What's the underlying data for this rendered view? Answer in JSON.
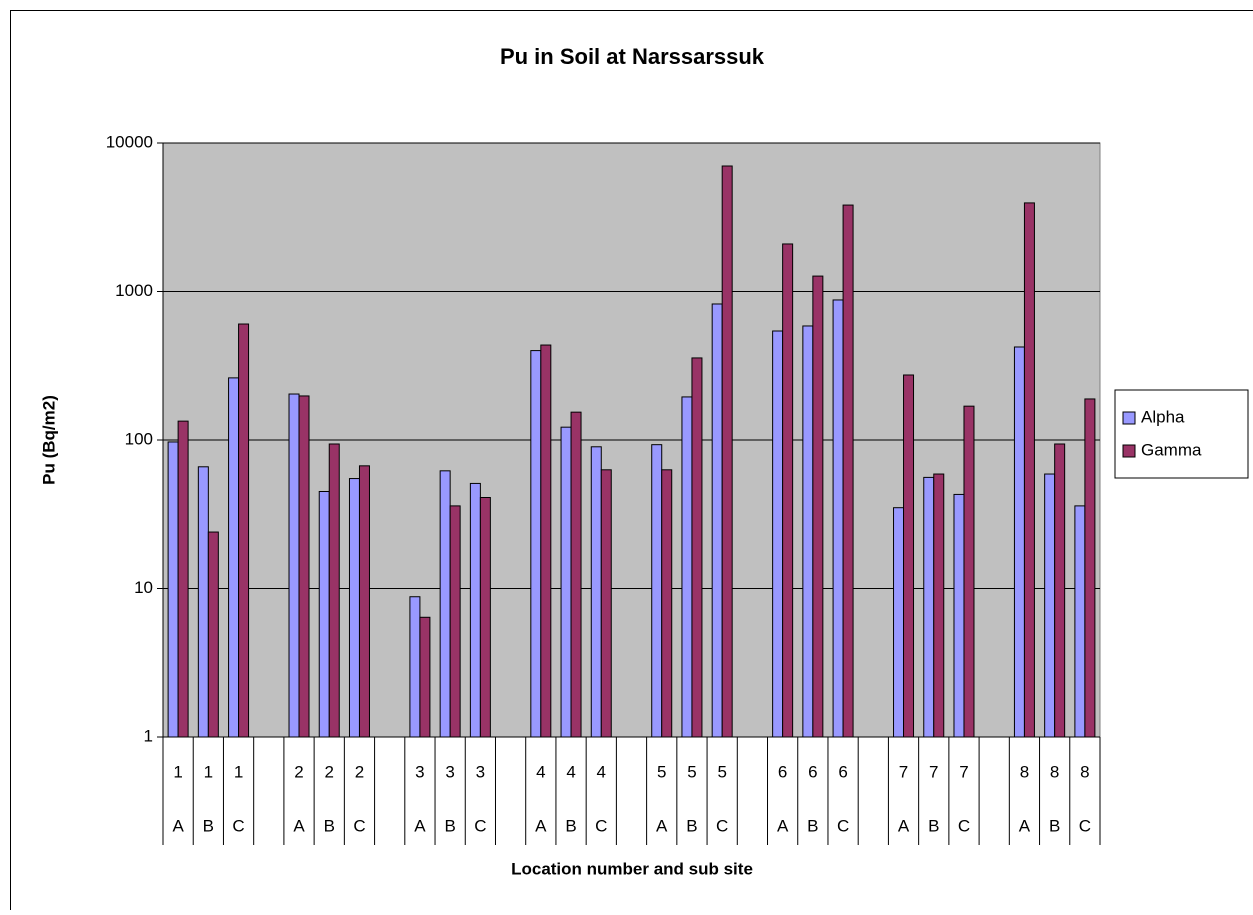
{
  "chart_data": {
    "type": "bar",
    "title": "Pu in Soil at Narssarssuk",
    "x_label": "Location number and sub site",
    "y_label": "Pu (Bq/m2)",
    "categories": [
      "1",
      "1",
      "1",
      null,
      "2",
      "2",
      "2",
      null,
      "3",
      "3",
      "3",
      null,
      "4",
      "4",
      "4",
      null,
      "5",
      "5",
      "5",
      null,
      "6",
      "6",
      "6",
      null,
      "7",
      "7",
      "7",
      null,
      "8",
      "8",
      "8"
    ],
    "subcategories": [
      "A",
      "B",
      "C",
      null,
      "A",
      "B",
      "C",
      null,
      "A",
      "B",
      "C",
      null,
      "A",
      "B",
      "C",
      null,
      "A",
      "B",
      "C",
      null,
      "A",
      "B",
      "C",
      null,
      "A",
      "B",
      "C",
      null,
      "A",
      "B",
      "C"
    ],
    "series": [
      {
        "name": "Alpha",
        "color": "#9999ff",
        "values": [
          97,
          66,
          262,
          null,
          204,
          45,
          55,
          null,
          8.8,
          62,
          51,
          null,
          400,
          122,
          90,
          null,
          93,
          195,
          824,
          null,
          542,
          586,
          877,
          null,
          35,
          56,
          43,
          null,
          423,
          59,
          36
        ]
      },
      {
        "name": "Gamma",
        "color": "#993366",
        "values": [
          134,
          24,
          604,
          null,
          198,
          94,
          67,
          null,
          6.4,
          36,
          41,
          null,
          436,
          154,
          63,
          null,
          63,
          357,
          7000,
          null,
          2090,
          1270,
          3820,
          null,
          274,
          59,
          169,
          null,
          3950,
          94,
          189
        ]
      }
    ],
    "ylim": [
      1,
      10000
    ],
    "yticks": [
      1,
      10,
      100,
      1000,
      10000
    ],
    "log_y": true,
    "grid": true,
    "plot_background": "#c0c0c0",
    "legend": "right"
  }
}
